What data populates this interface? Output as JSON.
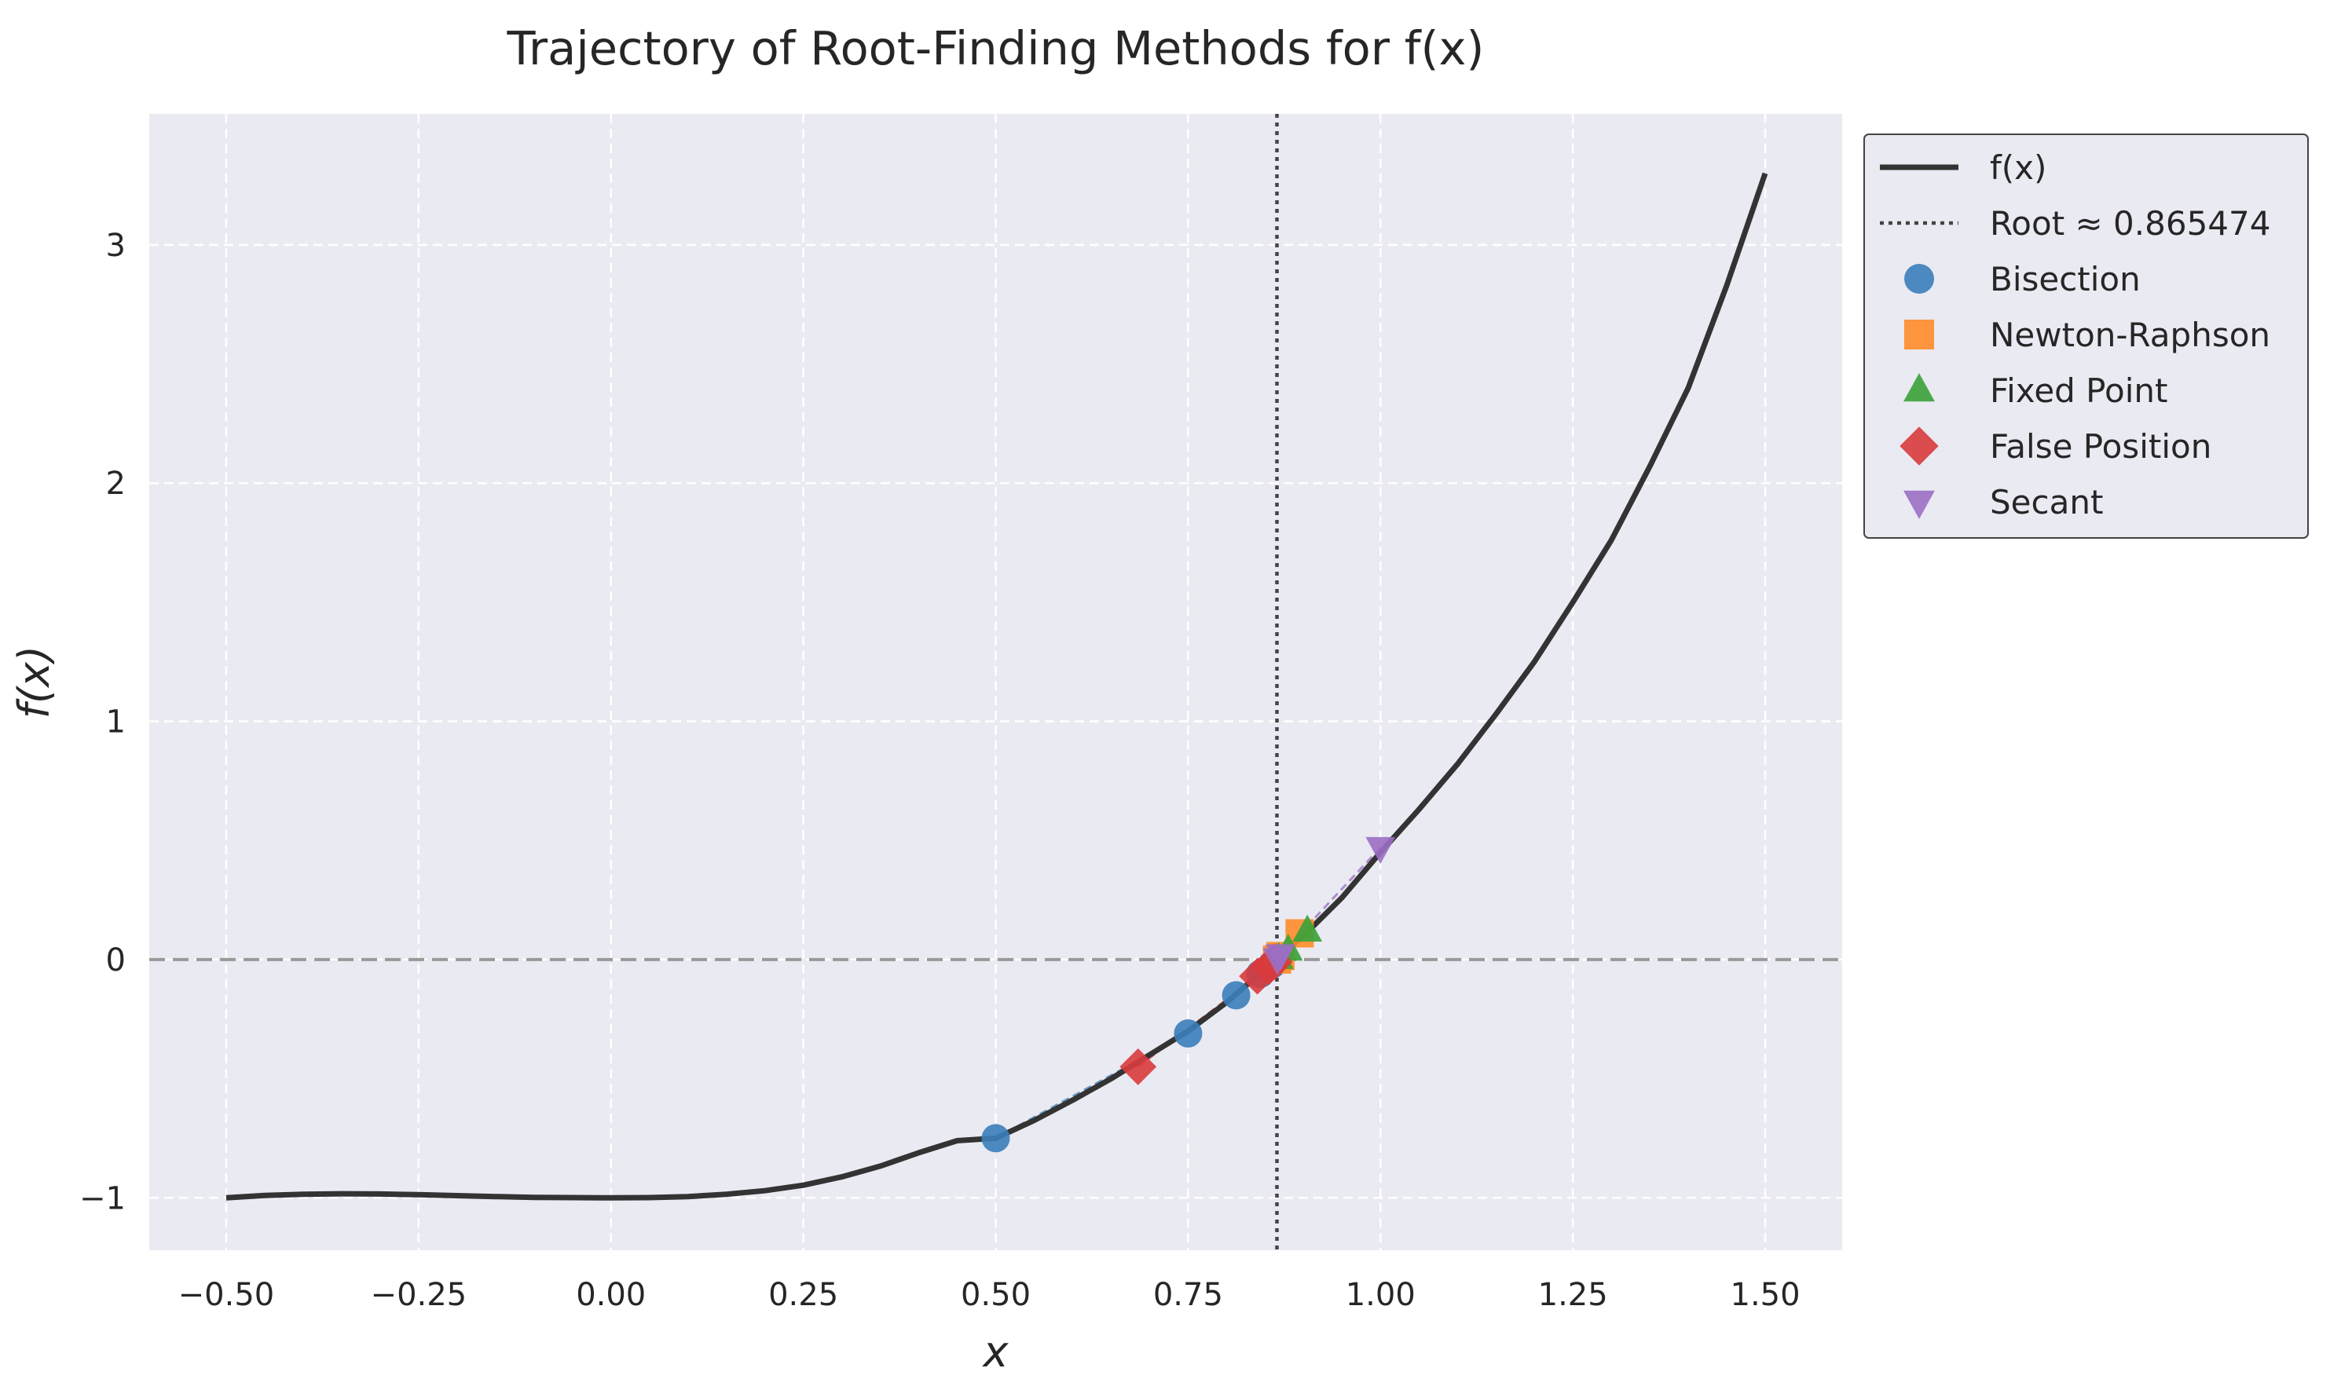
{
  "chart_data": {
    "type": "line",
    "title": "Trajectory of Root-Finding Methods for f(x)",
    "xlabel": "x",
    "ylabel": "f(x)",
    "xlim": [
      -0.6,
      1.6
    ],
    "ylim": [
      -1.22,
      3.55
    ],
    "x_ticks": [
      "−0.50",
      "−0.25",
      "0.00",
      "0.25",
      "0.50",
      "0.75",
      "1.00",
      "1.25",
      "1.50"
    ],
    "x_tick_values": [
      -0.5,
      -0.25,
      0,
      0.25,
      0.5,
      0.75,
      1.0,
      1.25,
      1.5
    ],
    "y_ticks": [
      "−1",
      "0",
      "1",
      "2",
      "3"
    ],
    "y_tick_values": [
      -1,
      0,
      1,
      2,
      3
    ],
    "grid": true,
    "background": "#EAEAF2",
    "legend_position": "outside-right",
    "root": 0.865474,
    "curve": {
      "name": "f(x)",
      "label": "f(x)",
      "color": "#333333",
      "x": [
        -0.5,
        -0.45,
        -0.4,
        -0.35,
        -0.3,
        -0.25,
        -0.2,
        -0.15,
        -0.1,
        -0.05,
        0.0,
        0.05,
        0.1,
        0.15,
        0.2,
        0.25,
        0.3,
        0.35,
        0.4,
        0.45,
        0.5,
        0.55,
        0.6,
        0.65,
        0.7,
        0.75,
        0.8,
        0.85,
        0.9,
        0.95,
        1.0,
        1.05,
        1.1,
        1.15,
        1.2,
        1.25,
        1.3,
        1.35,
        1.4,
        1.45,
        1.5
      ],
      "y": [
        -1.0,
        -0.99,
        -0.985,
        -0.983,
        -0.984,
        -0.987,
        -0.991,
        -0.995,
        -0.998,
        -0.999,
        -1.0,
        -0.999,
        -0.995,
        -0.985,
        -0.97,
        -0.947,
        -0.912,
        -0.867,
        -0.811,
        -0.76,
        -0.75,
        -0.675,
        -0.59,
        -0.5,
        -0.4,
        -0.3,
        -0.18,
        -0.04,
        0.1,
        0.26,
        0.45,
        0.63,
        0.82,
        1.03,
        1.25,
        1.5,
        1.76,
        2.07,
        2.4,
        2.83,
        3.3
      ]
    },
    "zero_line": {
      "y": 0,
      "color": "#999999"
    },
    "root_line": {
      "label": "Root ≈ 0.865474",
      "color": "#444444"
    },
    "series": [
      {
        "name": "Bisection",
        "marker": "circle",
        "color": "#3A7EBA",
        "x": [
          0.5,
          0.75,
          0.8125,
          0.84375,
          0.859375
        ],
        "y": [
          -0.75,
          -0.31,
          -0.15,
          -0.06,
          -0.02
        ]
      },
      {
        "name": "Newton-Raphson",
        "marker": "square",
        "color": "#FF8C2A",
        "x": [
          0.895,
          0.87,
          0.8656
        ],
        "y": [
          0.11,
          0.015,
          0.0
        ]
      },
      {
        "name": "Fixed Point",
        "marker": "triangle-up",
        "color": "#3AA23A",
        "x": [
          0.905,
          0.88,
          0.868
        ],
        "y": [
          0.12,
          0.04,
          0.005
        ]
      },
      {
        "name": "False Position",
        "marker": "diamond",
        "color": "#D93B3D",
        "x": [
          0.685,
          0.84,
          0.855,
          0.862
        ],
        "y": [
          -0.45,
          -0.07,
          -0.03,
          -0.01
        ]
      },
      {
        "name": "Secant",
        "marker": "triangle-down",
        "color": "#9B6FC4",
        "x": [
          1.0,
          0.87,
          0.866
        ],
        "y": [
          0.47,
          0.02,
          0.003
        ]
      }
    ]
  }
}
